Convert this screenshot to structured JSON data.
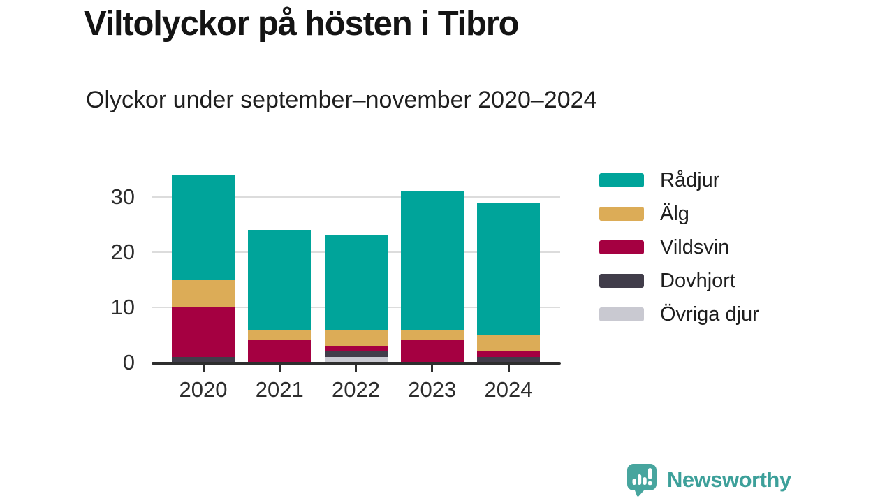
{
  "header": {
    "title": "Viltolyckor på hösten i Tibro",
    "subtitle": "Olyckor under september–november 2020–2024"
  },
  "chart_data": {
    "type": "bar",
    "stacked": true,
    "title": "Viltolyckor på hösten i Tibro",
    "subtitle": "Olyckor under september–november 2020–2024",
    "categories": [
      "2020",
      "2021",
      "2022",
      "2023",
      "2024"
    ],
    "series": [
      {
        "name": "Rådjur",
        "color": "#00a49a",
        "values": [
          19,
          18,
          17,
          25,
          24
        ]
      },
      {
        "name": "Älg",
        "color": "#dcac57",
        "values": [
          5,
          2,
          3,
          2,
          3
        ]
      },
      {
        "name": "Vildsvin",
        "color": "#a50041",
        "values": [
          9,
          4,
          1,
          4,
          1
        ]
      },
      {
        "name": "Dovhjort",
        "color": "#413d4a",
        "values": [
          1,
          0,
          1,
          0,
          1
        ]
      },
      {
        "name": "Övriga djur",
        "color": "#c9c9d1",
        "values": [
          0,
          0,
          1,
          0,
          0
        ]
      }
    ],
    "totals": [
      34,
      24,
      23,
      31,
      29
    ],
    "yticks": [
      0,
      10,
      20,
      30
    ],
    "ylim": [
      0,
      35
    ],
    "xlabel": "",
    "ylabel": "",
    "grid": "horizontal",
    "legend_position": "right",
    "stack_order_bottom_to_top": [
      "Övriga djur",
      "Dovhjort",
      "Vildsvin",
      "Älg",
      "Rådjur"
    ]
  },
  "colors": {
    "axis": "#2e2e2e",
    "gridline": "#dcdcdc",
    "title_text": "#141414",
    "brand_teal": "#3da09a"
  },
  "footer": {
    "brand": "Newsworthy",
    "logo_icon": "speech-bubble-bar-chart-exclamation"
  }
}
